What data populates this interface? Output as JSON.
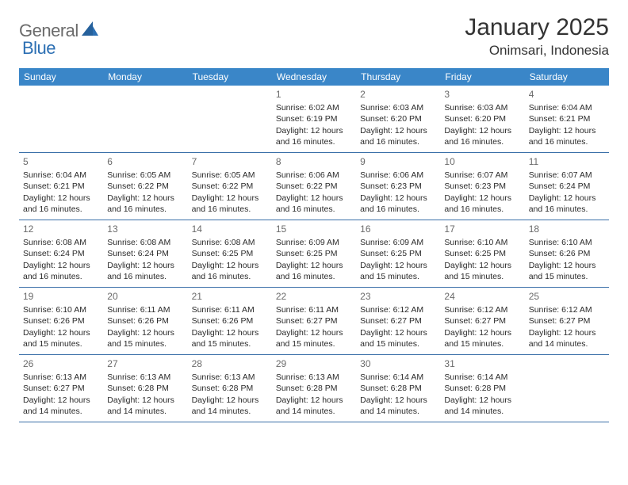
{
  "brand": {
    "word1": "General",
    "word2": "Blue",
    "text_color": "#6b6b6b",
    "accent_color": "#2c6fb3",
    "sail_color": "#26619c"
  },
  "title": {
    "month_year": "January 2025",
    "location": "Onimsari, Indonesia",
    "title_color": "#333333",
    "title_fontsize": 30,
    "location_fontsize": 17
  },
  "calendar": {
    "header_bg": "#3a86c8",
    "header_text_color": "#ffffff",
    "row_border_color": "#3a6fa8",
    "cell_text_color": "#2a2a2a",
    "daynum_color": "#6a6a6a",
    "weekdays": [
      "Sunday",
      "Monday",
      "Tuesday",
      "Wednesday",
      "Thursday",
      "Friday",
      "Saturday"
    ],
    "weeks": [
      [
        {
          "n": "",
          "sunrise": "",
          "sunset": "",
          "daylight": ""
        },
        {
          "n": "",
          "sunrise": "",
          "sunset": "",
          "daylight": ""
        },
        {
          "n": "",
          "sunrise": "",
          "sunset": "",
          "daylight": ""
        },
        {
          "n": "1",
          "sunrise": "Sunrise: 6:02 AM",
          "sunset": "Sunset: 6:19 PM",
          "daylight": "Daylight: 12 hours and 16 minutes."
        },
        {
          "n": "2",
          "sunrise": "Sunrise: 6:03 AM",
          "sunset": "Sunset: 6:20 PM",
          "daylight": "Daylight: 12 hours and 16 minutes."
        },
        {
          "n": "3",
          "sunrise": "Sunrise: 6:03 AM",
          "sunset": "Sunset: 6:20 PM",
          "daylight": "Daylight: 12 hours and 16 minutes."
        },
        {
          "n": "4",
          "sunrise": "Sunrise: 6:04 AM",
          "sunset": "Sunset: 6:21 PM",
          "daylight": "Daylight: 12 hours and 16 minutes."
        }
      ],
      [
        {
          "n": "5",
          "sunrise": "Sunrise: 6:04 AM",
          "sunset": "Sunset: 6:21 PM",
          "daylight": "Daylight: 12 hours and 16 minutes."
        },
        {
          "n": "6",
          "sunrise": "Sunrise: 6:05 AM",
          "sunset": "Sunset: 6:22 PM",
          "daylight": "Daylight: 12 hours and 16 minutes."
        },
        {
          "n": "7",
          "sunrise": "Sunrise: 6:05 AM",
          "sunset": "Sunset: 6:22 PM",
          "daylight": "Daylight: 12 hours and 16 minutes."
        },
        {
          "n": "8",
          "sunrise": "Sunrise: 6:06 AM",
          "sunset": "Sunset: 6:22 PM",
          "daylight": "Daylight: 12 hours and 16 minutes."
        },
        {
          "n": "9",
          "sunrise": "Sunrise: 6:06 AM",
          "sunset": "Sunset: 6:23 PM",
          "daylight": "Daylight: 12 hours and 16 minutes."
        },
        {
          "n": "10",
          "sunrise": "Sunrise: 6:07 AM",
          "sunset": "Sunset: 6:23 PM",
          "daylight": "Daylight: 12 hours and 16 minutes."
        },
        {
          "n": "11",
          "sunrise": "Sunrise: 6:07 AM",
          "sunset": "Sunset: 6:24 PM",
          "daylight": "Daylight: 12 hours and 16 minutes."
        }
      ],
      [
        {
          "n": "12",
          "sunrise": "Sunrise: 6:08 AM",
          "sunset": "Sunset: 6:24 PM",
          "daylight": "Daylight: 12 hours and 16 minutes."
        },
        {
          "n": "13",
          "sunrise": "Sunrise: 6:08 AM",
          "sunset": "Sunset: 6:24 PM",
          "daylight": "Daylight: 12 hours and 16 minutes."
        },
        {
          "n": "14",
          "sunrise": "Sunrise: 6:08 AM",
          "sunset": "Sunset: 6:25 PM",
          "daylight": "Daylight: 12 hours and 16 minutes."
        },
        {
          "n": "15",
          "sunrise": "Sunrise: 6:09 AM",
          "sunset": "Sunset: 6:25 PM",
          "daylight": "Daylight: 12 hours and 16 minutes."
        },
        {
          "n": "16",
          "sunrise": "Sunrise: 6:09 AM",
          "sunset": "Sunset: 6:25 PM",
          "daylight": "Daylight: 12 hours and 15 minutes."
        },
        {
          "n": "17",
          "sunrise": "Sunrise: 6:10 AM",
          "sunset": "Sunset: 6:25 PM",
          "daylight": "Daylight: 12 hours and 15 minutes."
        },
        {
          "n": "18",
          "sunrise": "Sunrise: 6:10 AM",
          "sunset": "Sunset: 6:26 PM",
          "daylight": "Daylight: 12 hours and 15 minutes."
        }
      ],
      [
        {
          "n": "19",
          "sunrise": "Sunrise: 6:10 AM",
          "sunset": "Sunset: 6:26 PM",
          "daylight": "Daylight: 12 hours and 15 minutes."
        },
        {
          "n": "20",
          "sunrise": "Sunrise: 6:11 AM",
          "sunset": "Sunset: 6:26 PM",
          "daylight": "Daylight: 12 hours and 15 minutes."
        },
        {
          "n": "21",
          "sunrise": "Sunrise: 6:11 AM",
          "sunset": "Sunset: 6:26 PM",
          "daylight": "Daylight: 12 hours and 15 minutes."
        },
        {
          "n": "22",
          "sunrise": "Sunrise: 6:11 AM",
          "sunset": "Sunset: 6:27 PM",
          "daylight": "Daylight: 12 hours and 15 minutes."
        },
        {
          "n": "23",
          "sunrise": "Sunrise: 6:12 AM",
          "sunset": "Sunset: 6:27 PM",
          "daylight": "Daylight: 12 hours and 15 minutes."
        },
        {
          "n": "24",
          "sunrise": "Sunrise: 6:12 AM",
          "sunset": "Sunset: 6:27 PM",
          "daylight": "Daylight: 12 hours and 15 minutes."
        },
        {
          "n": "25",
          "sunrise": "Sunrise: 6:12 AM",
          "sunset": "Sunset: 6:27 PM",
          "daylight": "Daylight: 12 hours and 14 minutes."
        }
      ],
      [
        {
          "n": "26",
          "sunrise": "Sunrise: 6:13 AM",
          "sunset": "Sunset: 6:27 PM",
          "daylight": "Daylight: 12 hours and 14 minutes."
        },
        {
          "n": "27",
          "sunrise": "Sunrise: 6:13 AM",
          "sunset": "Sunset: 6:28 PM",
          "daylight": "Daylight: 12 hours and 14 minutes."
        },
        {
          "n": "28",
          "sunrise": "Sunrise: 6:13 AM",
          "sunset": "Sunset: 6:28 PM",
          "daylight": "Daylight: 12 hours and 14 minutes."
        },
        {
          "n": "29",
          "sunrise": "Sunrise: 6:13 AM",
          "sunset": "Sunset: 6:28 PM",
          "daylight": "Daylight: 12 hours and 14 minutes."
        },
        {
          "n": "30",
          "sunrise": "Sunrise: 6:14 AM",
          "sunset": "Sunset: 6:28 PM",
          "daylight": "Daylight: 12 hours and 14 minutes."
        },
        {
          "n": "31",
          "sunrise": "Sunrise: 6:14 AM",
          "sunset": "Sunset: 6:28 PM",
          "daylight": "Daylight: 12 hours and 14 minutes."
        },
        {
          "n": "",
          "sunrise": "",
          "sunset": "",
          "daylight": ""
        }
      ]
    ]
  }
}
